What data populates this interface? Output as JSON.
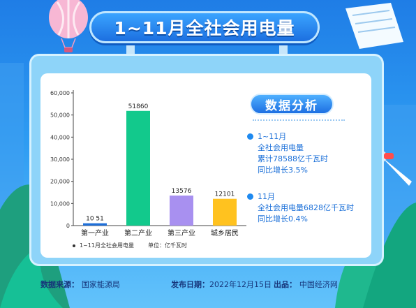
{
  "title": "1~11月全社会用电量",
  "chart_data": {
    "type": "bar",
    "categories": [
      "第一产业",
      "第二产业",
      "第三产业",
      "城乡居民"
    ],
    "values": [
      1051,
      51860,
      13576,
      12101
    ],
    "value_labels": [
      "10 51",
      "51860",
      "13576",
      "12101"
    ],
    "colors": [
      "#1e6fd9",
      "#12c98c",
      "#a890f0",
      "#ffc21f"
    ],
    "yticks": [
      "0",
      "10,000",
      "20,000",
      "30,000",
      "40,000",
      "50,000",
      "60,000"
    ],
    "ylim": [
      0,
      60000
    ],
    "grid": false,
    "legend_label": "1~11月全社会用电量",
    "unit_label": "单位：亿千瓦时"
  },
  "analysis": {
    "badge": "数据分析",
    "item1": [
      "1~11月",
      "全社会用电量",
      "累计78588亿千瓦时",
      "同比增长3.5%"
    ],
    "item2": [
      "11月",
      "全社会用电量6828亿千瓦时",
      "同比增长0.4%"
    ]
  },
  "footer": {
    "source_label": "数据来源：",
    "source_value": "国家能源局",
    "date_label": "发布日期：",
    "date_value": "2022年12月15日",
    "publisher_label": "出品：",
    "publisher_value": "中国经济网"
  }
}
